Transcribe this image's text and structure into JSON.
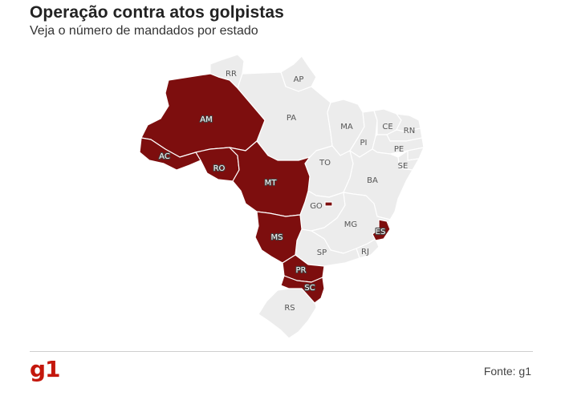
{
  "header": {
    "title": "Operação contra atos golpistas",
    "subtitle": "Veja o número de mandados por estado"
  },
  "map": {
    "highlight_color": "#7d0e0e",
    "base_color": "#ececec",
    "states_with_warrants": [
      "AM",
      "AC",
      "RO",
      "MT",
      "GO",
      "MS",
      "ES",
      "PR",
      "SC"
    ],
    "states_without_warrants": [
      "RR",
      "AP",
      "PA",
      "MA",
      "CE",
      "RN",
      "PI",
      "PE",
      "TO",
      "SE",
      "BA",
      "MG",
      "SP",
      "RJ",
      "RS"
    ],
    "labels": {
      "RR": "RR",
      "AP": "AP",
      "AM": "AM",
      "PA": "PA",
      "MA": "MA",
      "CE": "CE",
      "RN": "RN",
      "PI": "PI",
      "PE": "PE",
      "AC": "AC",
      "TO": "TO",
      "SE": "SE",
      "RO": "RO",
      "MT": "MT",
      "BA": "BA",
      "GO": "GO",
      "MG": "MG",
      "ES": "ES",
      "MS": "MS",
      "SP": "SP",
      "RJ": "RJ",
      "PR": "PR",
      "SC": "SC",
      "RS": "RS"
    }
  },
  "footer": {
    "logo": "g1",
    "logo_color": "#c4170c",
    "source": "Fonte: g1"
  }
}
